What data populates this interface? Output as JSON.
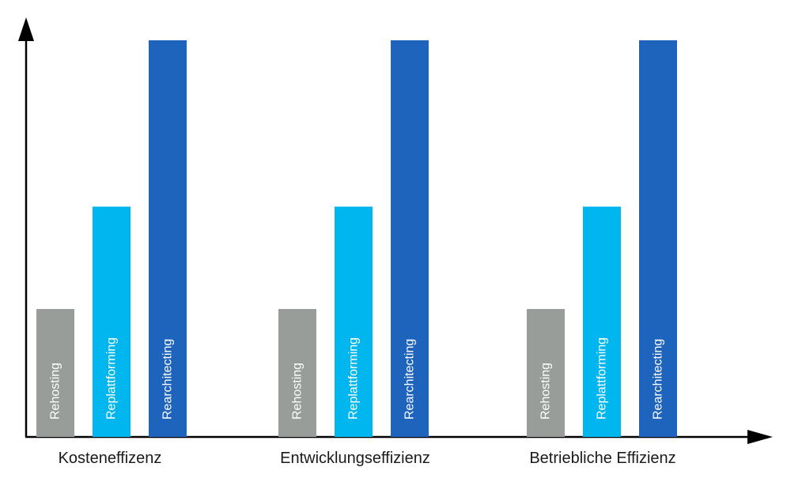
{
  "chart_data": {
    "type": "bar",
    "title": "",
    "xlabel": "",
    "ylabel": "",
    "categories": [
      "Kosteneffizenz",
      "Entwicklungseffizienz",
      "Betriebliche Effizienz"
    ],
    "series": [
      {
        "name": "Rehosting",
        "color": "#989d99",
        "values": [
          1,
          1,
          1
        ]
      },
      {
        "name": "Replattforming",
        "color": "#00b6ee",
        "values": [
          1.8,
          1.8,
          1.8
        ]
      },
      {
        "name": "Rearchitecting",
        "color": "#1e64bd",
        "values": [
          3.1,
          3.1,
          3.1
        ]
      }
    ],
    "ylim": [
      0,
      3.1
    ],
    "grid": false,
    "legend": "none",
    "axis_color": "#000000"
  }
}
